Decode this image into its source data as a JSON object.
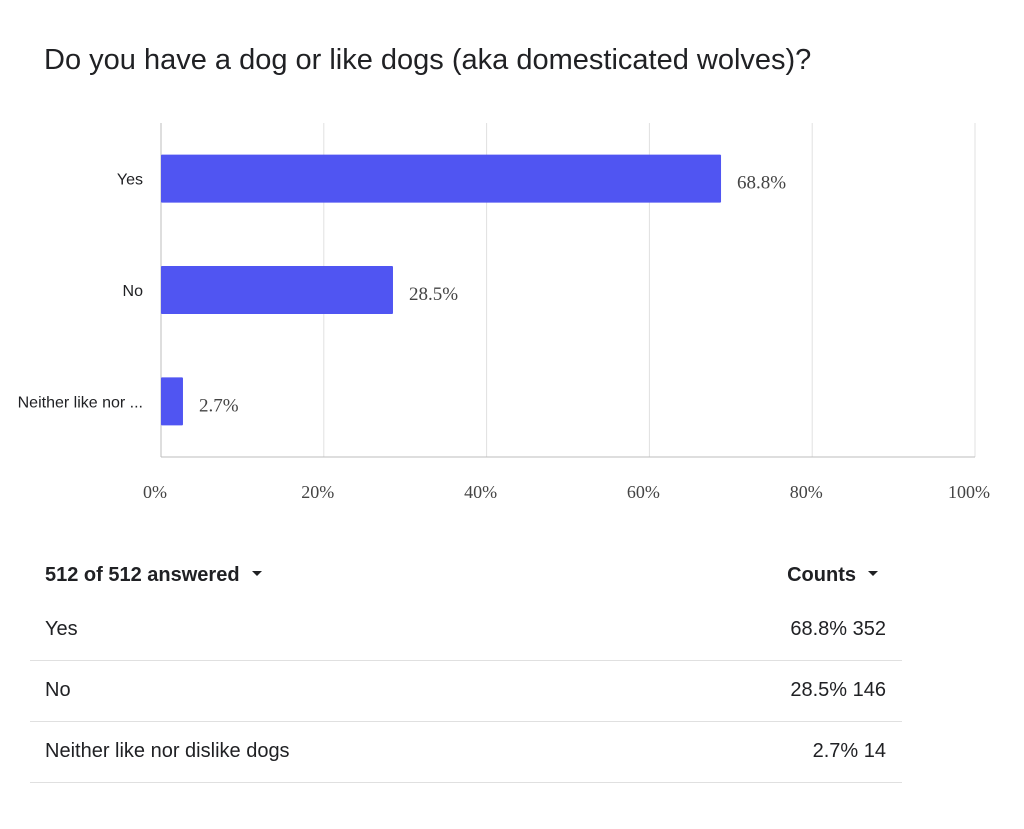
{
  "title": "Do you have a dog or like dogs (aka domesticated wolves)?",
  "chart_data": {
    "type": "bar",
    "orientation": "horizontal",
    "categories": [
      "Yes",
      "No",
      "Neither like nor ..."
    ],
    "values": [
      68.8,
      28.5,
      2.7
    ],
    "data_labels": [
      "68.8%",
      "28.5%",
      "2.7%"
    ],
    "x_ticks": [
      "0%",
      "20%",
      "40%",
      "60%",
      "80%",
      "100%"
    ],
    "xlim": [
      0,
      100
    ],
    "grid": true,
    "bar_color": "#5055f2",
    "title": "",
    "xlabel": "",
    "ylabel": ""
  },
  "summary": {
    "answered": "512 of 512 answered",
    "counts_label": "Counts",
    "rows": [
      {
        "label": "Yes",
        "value": "68.8% 352"
      },
      {
        "label": "No",
        "value": "28.5% 146"
      },
      {
        "label": "Neither like nor dislike dogs",
        "value": "2.7% 14"
      }
    ]
  }
}
